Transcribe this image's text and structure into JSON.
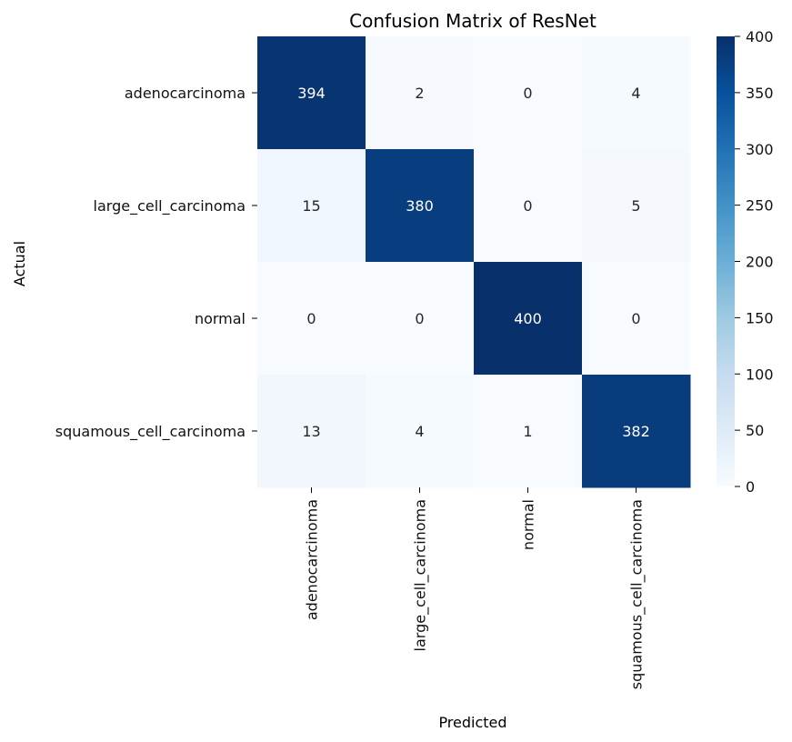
{
  "chart_data": {
    "type": "heatmap",
    "title": "Confusion Matrix of ResNet",
    "xlabel": "Predicted",
    "ylabel": "Actual",
    "row_labels": [
      "adenocarcinoma",
      "large_cell_carcinoma",
      "normal",
      "squamous_cell_carcinoma"
    ],
    "col_labels": [
      "adenocarcinoma",
      "large_cell_carcinoma",
      "normal",
      "squamous_cell_carcinoma"
    ],
    "values": [
      [
        394,
        2,
        0,
        4
      ],
      [
        15,
        380,
        0,
        5
      ],
      [
        0,
        0,
        400,
        0
      ],
      [
        13,
        4,
        1,
        382
      ]
    ],
    "colormap": "Blues",
    "vmin": 0,
    "vmax": 400,
    "colorbar_ticks": [
      0,
      50,
      100,
      150,
      200,
      250,
      300,
      350,
      400
    ],
    "grid": false
  }
}
